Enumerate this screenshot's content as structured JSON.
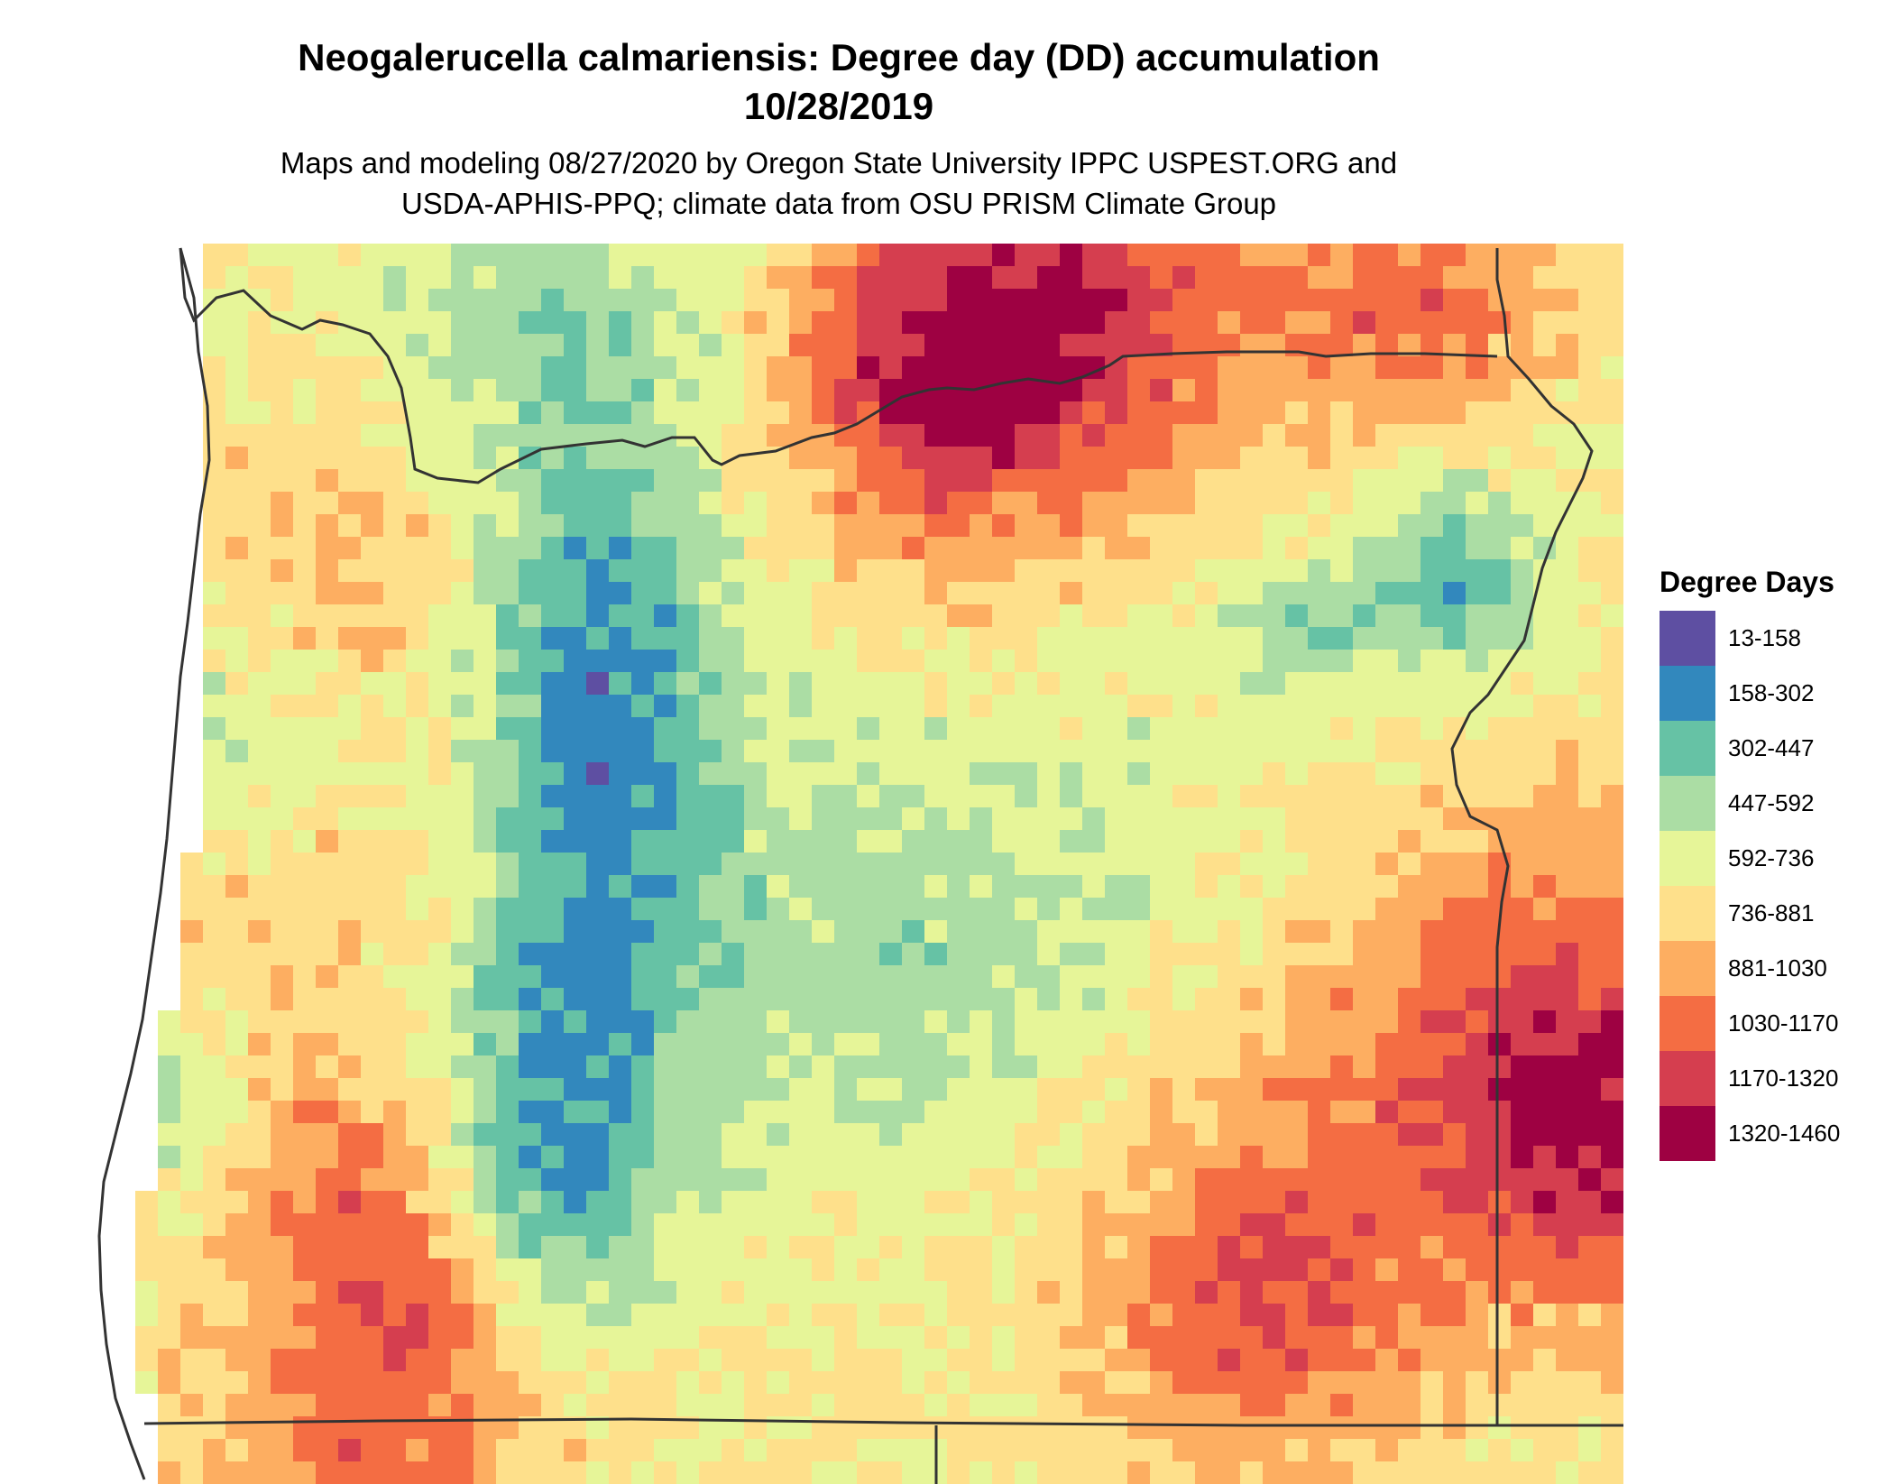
{
  "title": {
    "line1": "Neogalerucella calmariensis: Degree day (DD) accumulation",
    "line2": "10/28/2019"
  },
  "subtitle": {
    "line1": "Maps and modeling 08/27/2020 by Oregon State University IPPC USPEST.ORG and",
    "line2": "USDA-APHIS-PPQ; climate data from OSU PRISM Climate Group"
  },
  "legend": {
    "title": "Degree Days",
    "items": [
      {
        "label": "13-158",
        "color": "#5e4fa2"
      },
      {
        "label": "158-302",
        "color": "#3288bd"
      },
      {
        "label": "302-447",
        "color": "#66c2a5"
      },
      {
        "label": "447-592",
        "color": "#abdda4"
      },
      {
        "label": "592-736",
        "color": "#e6f598"
      },
      {
        "label": "736-881",
        "color": "#fee08b"
      },
      {
        "label": "881-1030",
        "color": "#fdae61"
      },
      {
        "label": "1030-1170",
        "color": "#f46d43"
      },
      {
        "label": "1170-1320",
        "color": "#d53e4f"
      },
      {
        "label": "1320-1460",
        "color": "#9e0142"
      }
    ]
  },
  "map": {
    "region": "Oregon",
    "boundary_color": "#333333"
  }
}
